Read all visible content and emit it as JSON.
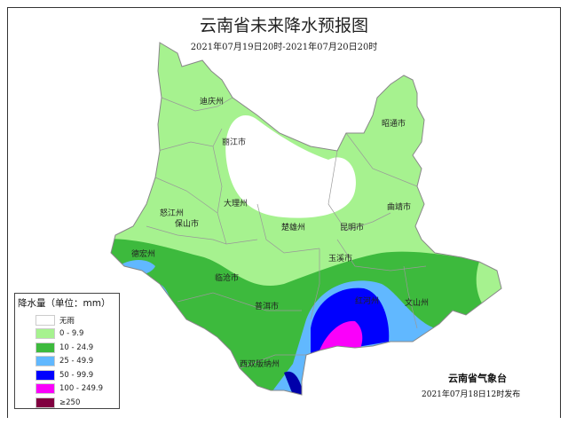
{
  "title": "云南省未来降水预报图",
  "subtitle": "2021年07月19日20时-2021年07月20日20时",
  "legend": {
    "title": "降水量（单位：mm）",
    "items": [
      {
        "label": "无雨",
        "color": "#ffffff"
      },
      {
        "label": "0 - 9.9",
        "color": "#a6f28f"
      },
      {
        "label": "10 - 24.9",
        "color": "#3dba3d"
      },
      {
        "label": "25 - 49.9",
        "color": "#61b8ff"
      },
      {
        "label": "50 - 99.9",
        "color": "#0000fe"
      },
      {
        "label": "100 - 249.9",
        "color": "#fa00fa"
      },
      {
        "label": "≥250",
        "color": "#800040"
      }
    ]
  },
  "cities": [
    "迪庆州",
    "丽江市",
    "怒江州",
    "大理州",
    "保山市",
    "楚雄州",
    "昆明市",
    "曲靖市",
    "昭通市",
    "德宏州",
    "临沧市",
    "玉溪市",
    "红河州",
    "文山州",
    "普洱市",
    "西双版纳州"
  ],
  "footer": {
    "issuer": "云南省气象台",
    "issued": "2021年07月18日12时发布"
  }
}
